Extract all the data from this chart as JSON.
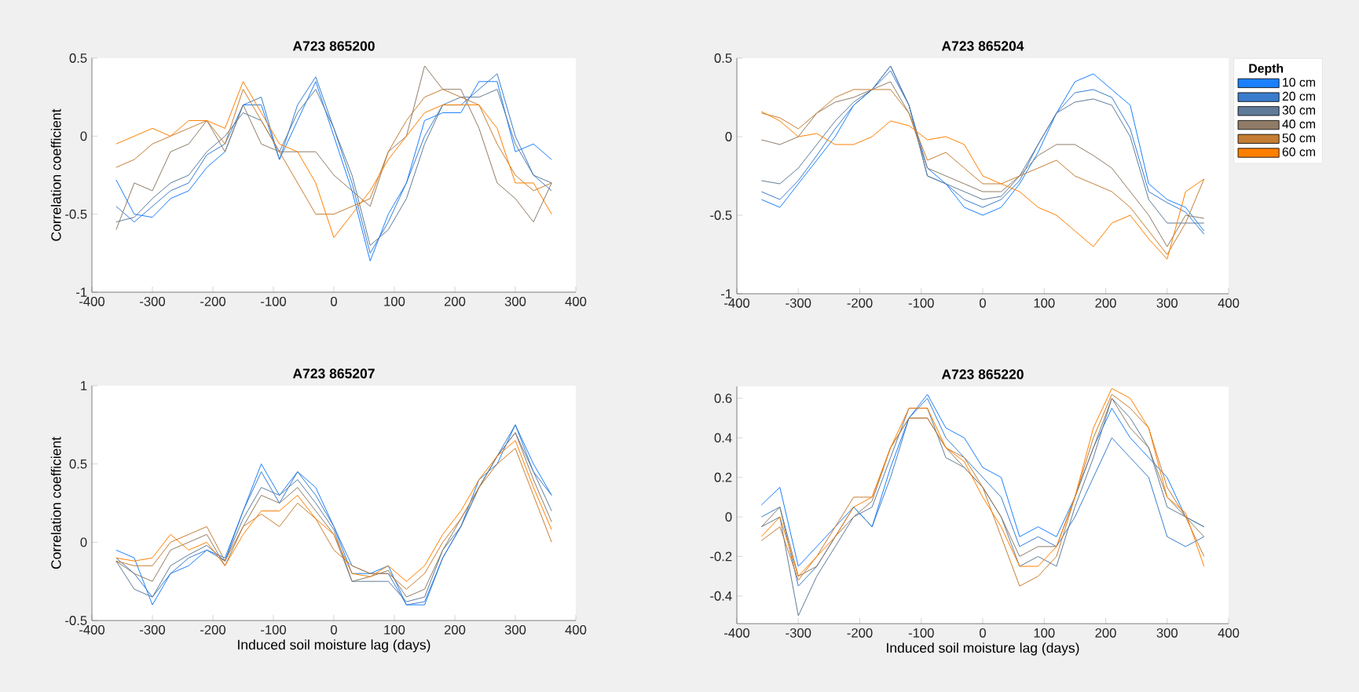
{
  "chart_data": [
    {
      "type": "line",
      "title": "A723 865200",
      "ylabel": "Correlation coefficient",
      "x": [
        -360,
        -330,
        -300,
        -270,
        -240,
        -210,
        -180,
        -150,
        -120,
        -90,
        -60,
        -30,
        0,
        30,
        60,
        90,
        120,
        150,
        180,
        210,
        240,
        270,
        300,
        330,
        360
      ],
      "xlim": [
        -400,
        400
      ],
      "xticks": [
        -400,
        -300,
        -200,
        -100,
        0,
        100,
        200,
        300,
        400
      ],
      "ylim": [
        -1,
        0.5
      ],
      "yticks": [
        -1,
        -0.5,
        0,
        0.5
      ],
      "series": [
        {
          "color": "#1a80ff",
          "values": [
            -0.28,
            -0.5,
            -0.52,
            -0.4,
            -0.35,
            -0.2,
            -0.1,
            0.2,
            0.2,
            -0.15,
            0.1,
            0.35,
            0.0,
            -0.35,
            -0.8,
            -0.5,
            -0.3,
            0.1,
            0.15,
            0.15,
            0.35,
            0.35,
            -0.1,
            -0.05,
            -0.15
          ]
        },
        {
          "color": "#3a7ccc",
          "values": [
            -0.45,
            -0.55,
            -0.45,
            -0.35,
            -0.3,
            -0.12,
            -0.05,
            0.2,
            0.25,
            -0.15,
            0.2,
            0.38,
            0.05,
            -0.3,
            -0.75,
            -0.55,
            -0.3,
            0.0,
            0.2,
            0.2,
            0.3,
            0.4,
            0.0,
            -0.25,
            -0.35
          ]
        },
        {
          "color": "#5f7b99",
          "values": [
            -0.55,
            -0.52,
            -0.4,
            -0.3,
            -0.25,
            -0.1,
            0.0,
            0.15,
            0.1,
            -0.1,
            0.15,
            0.3,
            0.05,
            -0.25,
            -0.7,
            -0.6,
            -0.4,
            -0.05,
            0.2,
            0.25,
            0.25,
            0.3,
            -0.05,
            -0.25,
            -0.3
          ]
        },
        {
          "color": "#8f7b66",
          "values": [
            -0.6,
            -0.3,
            -0.35,
            -0.1,
            -0.05,
            0.1,
            -0.1,
            0.2,
            -0.05,
            -0.1,
            -0.1,
            -0.1,
            -0.25,
            -0.35,
            -0.45,
            -0.1,
            0.0,
            0.45,
            0.3,
            0.3,
            0.05,
            -0.3,
            -0.4,
            -0.55,
            -0.3
          ]
        },
        {
          "color": "#c47d33",
          "values": [
            -0.2,
            -0.15,
            -0.05,
            0.0,
            0.05,
            0.1,
            -0.05,
            0.3,
            0.1,
            -0.1,
            -0.3,
            -0.5,
            -0.5,
            -0.45,
            -0.4,
            -0.1,
            0.1,
            0.25,
            0.3,
            0.25,
            0.2,
            -0.05,
            -0.25,
            -0.35,
            -0.3
          ]
        },
        {
          "color": "#ff7f00",
          "values": [
            -0.05,
            0.0,
            0.05,
            0.0,
            0.1,
            0.1,
            0.05,
            0.35,
            0.15,
            -0.05,
            -0.1,
            -0.3,
            -0.65,
            -0.5,
            -0.35,
            -0.15,
            0.0,
            0.15,
            0.2,
            0.2,
            0.2,
            0.05,
            -0.3,
            -0.3,
            -0.5
          ]
        }
      ]
    },
    {
      "type": "line",
      "title": "A723 865204",
      "legend": "right",
      "legend_title": "Depth",
      "x": [
        -360,
        -330,
        -300,
        -270,
        -240,
        -210,
        -180,
        -150,
        -120,
        -90,
        -60,
        -30,
        0,
        30,
        60,
        90,
        120,
        150,
        180,
        210,
        240,
        270,
        300,
        330,
        360
      ],
      "xlim": [
        -400,
        400
      ],
      "xticks": [
        -400,
        -300,
        -200,
        -100,
        0,
        100,
        200,
        300,
        400
      ],
      "ylim": [
        -1,
        0.5
      ],
      "yticks": [
        -1,
        -0.5,
        0,
        0.5
      ],
      "series": [
        {
          "name": "10 cm",
          "color": "#1a80ff",
          "values": [
            -0.4,
            -0.45,
            -0.3,
            -0.15,
            0.0,
            0.2,
            0.3,
            0.45,
            0.2,
            -0.2,
            -0.3,
            -0.45,
            -0.5,
            -0.45,
            -0.3,
            -0.1,
            0.15,
            0.35,
            0.4,
            0.3,
            0.2,
            -0.3,
            -0.4,
            -0.45,
            -0.6
          ]
        },
        {
          "name": "20 cm",
          "color": "#3a7ccc",
          "values": [
            -0.35,
            -0.4,
            -0.28,
            -0.12,
            0.05,
            0.2,
            0.3,
            0.42,
            0.2,
            -0.25,
            -0.3,
            -0.4,
            -0.45,
            -0.4,
            -0.28,
            -0.05,
            0.15,
            0.28,
            0.3,
            0.25,
            0.05,
            -0.35,
            -0.42,
            -0.48,
            -0.62
          ]
        },
        {
          "name": "30 cm",
          "color": "#5f7b99",
          "values": [
            -0.28,
            -0.3,
            -0.2,
            -0.05,
            0.1,
            0.22,
            0.3,
            0.45,
            0.2,
            -0.25,
            -0.3,
            -0.35,
            -0.4,
            -0.38,
            -0.25,
            -0.05,
            0.15,
            0.22,
            0.24,
            0.2,
            0.0,
            -0.4,
            -0.55,
            -0.55,
            -0.55
          ]
        },
        {
          "name": "40 cm",
          "color": "#8f7b66",
          "values": [
            -0.02,
            -0.05,
            0.0,
            0.15,
            0.22,
            0.25,
            0.3,
            0.35,
            0.15,
            -0.2,
            -0.25,
            -0.3,
            -0.35,
            -0.35,
            -0.25,
            -0.12,
            -0.05,
            -0.05,
            -0.12,
            -0.2,
            -0.35,
            -0.5,
            -0.7,
            -0.5,
            -0.52
          ]
        },
        {
          "name": "50 cm",
          "color": "#c47d33",
          "values": [
            0.15,
            0.12,
            0.05,
            0.15,
            0.25,
            0.3,
            0.3,
            0.3,
            0.15,
            -0.15,
            -0.1,
            -0.2,
            -0.3,
            -0.3,
            -0.25,
            -0.2,
            -0.15,
            -0.25,
            -0.3,
            -0.35,
            -0.45,
            -0.6,
            -0.75,
            -0.55,
            -0.27
          ]
        },
        {
          "name": "60 cm",
          "color": "#ff7f00",
          "values": [
            0.16,
            0.1,
            0.0,
            0.02,
            -0.05,
            -0.05,
            0.0,
            0.1,
            0.07,
            -0.02,
            0.0,
            -0.05,
            -0.25,
            -0.3,
            -0.35,
            -0.45,
            -0.5,
            -0.6,
            -0.7,
            -0.55,
            -0.5,
            -0.65,
            -0.78,
            -0.35,
            -0.27
          ]
        }
      ]
    },
    {
      "type": "line",
      "title": "A723 865207",
      "xlabel": "Induced soil moisture lag (days)",
      "ylabel": "Correlation coefficient",
      "x": [
        -360,
        -330,
        -300,
        -270,
        -240,
        -210,
        -180,
        -150,
        -120,
        -90,
        -60,
        -30,
        0,
        30,
        60,
        90,
        120,
        150,
        180,
        210,
        240,
        270,
        300,
        330,
        360
      ],
      "xlim": [
        -400,
        400
      ],
      "xticks": [
        -400,
        -300,
        -200,
        -100,
        0,
        100,
        200,
        300,
        400
      ],
      "ylim": [
        -0.5,
        1
      ],
      "yticks": [
        -0.5,
        0,
        0.5,
        1
      ],
      "series": [
        {
          "color": "#1a80ff",
          "values": [
            -0.05,
            -0.1,
            -0.4,
            -0.2,
            -0.15,
            -0.05,
            -0.1,
            0.2,
            0.5,
            0.3,
            0.45,
            0.35,
            0.1,
            -0.2,
            -0.2,
            -0.15,
            -0.4,
            -0.4,
            -0.1,
            0.1,
            0.4,
            0.5,
            0.75,
            0.5,
            0.3
          ]
        },
        {
          "color": "#3a7ccc",
          "values": [
            -0.1,
            -0.2,
            -0.35,
            -0.2,
            -0.1,
            -0.05,
            -0.12,
            0.2,
            0.45,
            0.25,
            0.45,
            0.3,
            0.1,
            -0.15,
            -0.2,
            -0.2,
            -0.4,
            -0.38,
            -0.1,
            0.1,
            0.35,
            0.55,
            0.75,
            0.45,
            0.3
          ]
        },
        {
          "color": "#5f7b99",
          "values": [
            -0.12,
            -0.3,
            -0.35,
            -0.15,
            -0.08,
            -0.02,
            -0.12,
            0.15,
            0.35,
            0.3,
            0.4,
            0.25,
            0.08,
            -0.25,
            -0.25,
            -0.25,
            -0.38,
            -0.35,
            -0.05,
            0.1,
            0.35,
            0.55,
            0.7,
            0.45,
            0.2
          ]
        },
        {
          "color": "#8f7b66",
          "values": [
            -0.12,
            -0.2,
            -0.25,
            -0.05,
            0.0,
            0.05,
            -0.15,
            0.1,
            0.3,
            0.25,
            0.35,
            0.2,
            0.05,
            -0.25,
            -0.22,
            -0.18,
            -0.35,
            -0.3,
            -0.05,
            0.15,
            0.35,
            0.55,
            0.7,
            0.4,
            0.13
          ]
        },
        {
          "color": "#c47d33",
          "values": [
            -0.12,
            -0.15,
            -0.15,
            0.0,
            0.05,
            0.1,
            -0.12,
            0.1,
            0.18,
            0.1,
            0.25,
            0.15,
            -0.05,
            -0.15,
            -0.2,
            -0.2,
            -0.3,
            -0.2,
            0.0,
            0.15,
            0.35,
            0.5,
            0.6,
            0.3,
            0.0
          ]
        },
        {
          "color": "#ff7f00",
          "values": [
            -0.1,
            -0.12,
            -0.1,
            0.05,
            -0.05,
            0.0,
            -0.15,
            0.05,
            0.2,
            0.2,
            0.3,
            0.15,
            0.05,
            -0.2,
            -0.22,
            -0.15,
            -0.25,
            -0.15,
            0.05,
            0.2,
            0.4,
            0.55,
            0.65,
            0.35,
            0.08
          ]
        }
      ]
    },
    {
      "type": "line",
      "title": "A723 865220",
      "xlabel": "Induced soil moisture lag (days)",
      "x": [
        -360,
        -330,
        -300,
        -270,
        -240,
        -210,
        -180,
        -150,
        -120,
        -90,
        -60,
        -30,
        0,
        30,
        60,
        90,
        120,
        150,
        180,
        210,
        240,
        270,
        300,
        330,
        360
      ],
      "xlim": [
        -400,
        400
      ],
      "xticks": [
        -400,
        -300,
        -200,
        -100,
        0,
        100,
        200,
        300,
        400
      ],
      "ylim": [
        -0.54,
        0.66
      ],
      "yticks": [
        -0.4,
        -0.2,
        0,
        0.2,
        0.4,
        0.6
      ],
      "series": [
        {
          "color": "#1a80ff",
          "values": [
            0.06,
            0.15,
            -0.25,
            -0.15,
            -0.05,
            0.05,
            -0.05,
            0.25,
            0.5,
            0.62,
            0.45,
            0.4,
            0.25,
            0.2,
            -0.1,
            -0.05,
            -0.1,
            0.1,
            0.35,
            0.55,
            0.4,
            0.3,
            0.2,
            0.0,
            -0.05
          ]
        },
        {
          "color": "#3a7ccc",
          "values": [
            0.0,
            0.05,
            -0.35,
            -0.25,
            -0.1,
            0.05,
            -0.05,
            0.2,
            0.5,
            0.6,
            0.4,
            0.3,
            0.2,
            0.1,
            -0.15,
            -0.1,
            -0.15,
            0.0,
            0.2,
            0.4,
            0.3,
            0.2,
            -0.1,
            -0.15,
            -0.1
          ]
        },
        {
          "color": "#5f7b99",
          "values": [
            -0.05,
            0.0,
            -0.5,
            -0.3,
            -0.15,
            0.0,
            0.05,
            0.3,
            0.55,
            0.55,
            0.3,
            0.25,
            0.15,
            0.0,
            -0.25,
            -0.2,
            -0.25,
            0.05,
            0.3,
            0.6,
            0.5,
            0.35,
            0.05,
            0.0,
            -0.05
          ]
        },
        {
          "color": "#8f7b66",
          "values": [
            -0.05,
            0.05,
            -0.3,
            -0.25,
            -0.1,
            0.0,
            0.08,
            0.35,
            0.5,
            0.5,
            0.35,
            0.25,
            0.15,
            0.0,
            -0.2,
            -0.15,
            -0.15,
            0.1,
            0.35,
            0.6,
            0.45,
            0.35,
            0.1,
            0.0,
            -0.1
          ]
        },
        {
          "color": "#c47d33",
          "values": [
            -0.12,
            -0.05,
            -0.32,
            -0.2,
            -0.05,
            0.1,
            0.1,
            0.35,
            0.5,
            0.5,
            0.35,
            0.3,
            0.15,
            -0.1,
            -0.35,
            -0.3,
            -0.2,
            0.1,
            0.4,
            0.62,
            0.55,
            0.45,
            0.15,
            0.0,
            -0.2
          ]
        },
        {
          "color": "#ff7f00",
          "values": [
            -0.1,
            0.0,
            -0.3,
            -0.2,
            -0.1,
            0.05,
            0.1,
            0.35,
            0.55,
            0.55,
            0.35,
            0.28,
            0.1,
            -0.05,
            -0.25,
            -0.25,
            -0.15,
            0.1,
            0.45,
            0.65,
            0.6,
            0.45,
            0.1,
            0.02,
            -0.25
          ]
        }
      ]
    }
  ]
}
